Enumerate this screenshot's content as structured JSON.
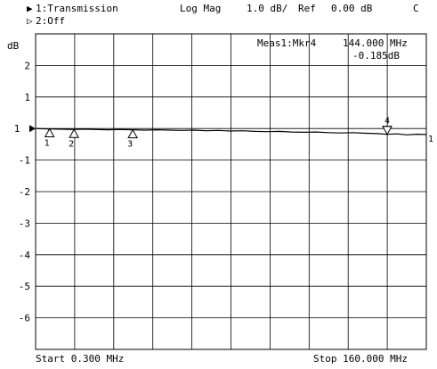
{
  "header": {
    "ch1_marker": "▶",
    "ch1_label": "1:Transmission",
    "format": "Log Mag",
    "scale": "1.0 dB/",
    "ref_label": "Ref",
    "ref_value": "0.00 dB",
    "ch_letter": "C",
    "ch2_marker": "▷",
    "ch2_label": "2:Off"
  },
  "marker_readout": {
    "name": "Meas1:Mkr4",
    "frequency": "144.000 MHz",
    "value": "-0.185dB"
  },
  "footer": {
    "start": "Start 0.300 MHz",
    "stop": "Stop 160.000 MHz"
  },
  "chart_data": {
    "type": "line",
    "ylabel": "dB",
    "ylim": [
      -7,
      3
    ],
    "xlim": [
      0.3,
      160.0
    ],
    "x_divisions": 10,
    "y_divisions": 10,
    "y_ticks": [
      2,
      1,
      -1,
      -2,
      -3,
      -4,
      -5,
      -6
    ],
    "y_tick_labels": [
      "2",
      "1",
      "-1",
      "-2",
      "-3",
      "-4",
      "-5",
      "-6"
    ],
    "reference_position_label": "1",
    "right_edge_label": "1",
    "grid": true,
    "series": [
      {
        "color": "#000000",
        "x": [
          0.3,
          5,
          10,
          16,
          20,
          25,
          30,
          35,
          40,
          45,
          50,
          55,
          60,
          65,
          70,
          75,
          80,
          85,
          90,
          95,
          100,
          105,
          110,
          115,
          120,
          125,
          130,
          135,
          140,
          144,
          148,
          152,
          156,
          160
        ],
        "y": [
          0.0,
          -0.01,
          -0.02,
          -0.03,
          -0.02,
          -0.03,
          -0.04,
          -0.03,
          -0.04,
          -0.05,
          -0.04,
          -0.05,
          -0.06,
          -0.05,
          -0.07,
          -0.06,
          -0.08,
          -0.07,
          -0.09,
          -0.1,
          -0.09,
          -0.11,
          -0.12,
          -0.11,
          -0.13,
          -0.14,
          -0.13,
          -0.15,
          -0.16,
          -0.185,
          -0.17,
          -0.2,
          -0.18,
          -0.19
        ]
      }
    ],
    "markers": [
      {
        "label": "1",
        "x": 6.0,
        "y": -0.01,
        "style": "up"
      },
      {
        "label": "2",
        "x": 16.0,
        "y": -0.03,
        "style": "up"
      },
      {
        "label": "3",
        "x": 40.0,
        "y": -0.04,
        "style": "up"
      },
      {
        "label": "4",
        "x": 144.0,
        "y": -0.185,
        "style": "down"
      }
    ]
  }
}
